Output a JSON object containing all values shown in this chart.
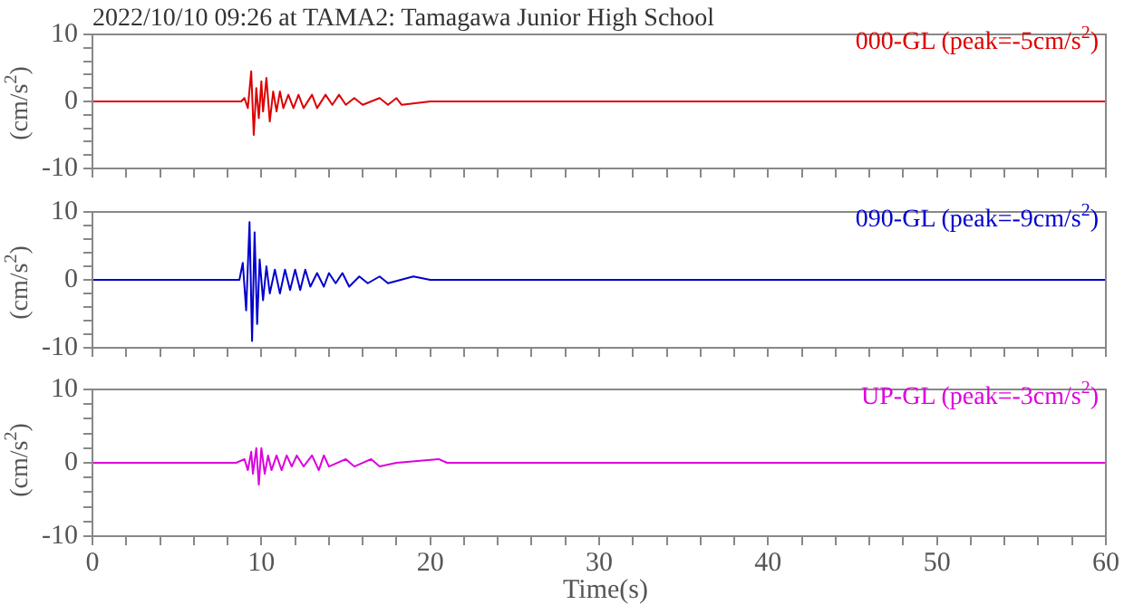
{
  "chart_data": [
    {
      "type": "line",
      "title": "2022/10/10 09:26 at TAMA2: Tamagawa Junior High School",
      "ylabel": "(cm/s$^{2}$)",
      "xlim": [
        0,
        60
      ],
      "ylim": [
        -10,
        10
      ],
      "tick_labels": "y",
      "xticks": [
        0,
        {
          "value": 2,
          "label": null
        },
        {
          "value": 4,
          "label": null
        },
        {
          "value": 6,
          "label": null
        },
        {
          "value": 8,
          "label": null
        },
        10,
        {
          "value": 12,
          "label": null
        },
        {
          "value": 14,
          "label": null
        },
        {
          "value": 16,
          "label": null
        },
        {
          "value": 18,
          "label": null
        },
        20,
        {
          "value": 22,
          "label": null
        },
        {
          "value": 24,
          "label": null
        },
        {
          "value": 26,
          "label": null
        },
        {
          "value": 28,
          "label": null
        },
        30,
        {
          "value": 32,
          "label": null
        },
        {
          "value": 34,
          "label": null
        },
        {
          "value": 36,
          "label": null
        },
        {
          "value": 38,
          "label": null
        },
        40,
        {
          "value": 42,
          "label": null
        },
        {
          "value": 44,
          "label": null
        },
        {
          "value": 46,
          "label": null
        },
        {
          "value": 48,
          "label": null
        },
        50,
        {
          "value": 52,
          "label": null
        },
        {
          "value": 54,
          "label": null
        },
        {
          "value": 56,
          "label": null
        },
        {
          "value": 58,
          "label": null
        },
        60
      ],
      "yticks": [
        -10,
        {
          "value": -8,
          "label": null
        },
        {
          "value": -6,
          "label": null
        },
        {
          "value": -4,
          "label": null
        },
        {
          "value": -2,
          "label": null
        },
        0,
        {
          "value": 2,
          "label": null
        },
        {
          "value": 4,
          "label": null
        },
        {
          "value": 6,
          "label": null
        },
        {
          "value": 8,
          "label": null
        },
        10
      ],
      "series": [
        {
          "name": "000-GL (peak=-5cm/s$^{2}$)",
          "color": "#dd0000",
          "x": [
            0,
            8.8,
            9.0,
            9.2,
            9.4,
            9.55,
            9.7,
            9.85,
            10.0,
            10.1,
            10.3,
            10.5,
            10.7,
            10.9,
            11.1,
            11.3,
            11.6,
            11.9,
            12.2,
            12.5,
            13.0,
            13.3,
            13.8,
            14.2,
            14.6,
            15.0,
            15.5,
            16.0,
            17.0,
            17.5,
            18.0,
            18.3,
            20.0,
            30.0,
            45.0,
            60
          ],
          "values": [
            0,
            0,
            0.5,
            -1,
            4.5,
            -5,
            2,
            -2.5,
            3,
            -1.5,
            3.5,
            -3,
            1.5,
            -1.5,
            1.5,
            -1,
            1,
            -1,
            1,
            -1,
            1,
            -1,
            1,
            -0.5,
            1,
            -0.5,
            0.5,
            -0.5,
            0.5,
            -0.5,
            0.5,
            -0.5,
            0,
            0,
            0,
            0
          ]
        }
      ]
    },
    {
      "type": "line",
      "ylabel": "(cm/s$^{2}$)",
      "xlim": [
        0,
        60
      ],
      "ylim": [
        -10,
        10
      ],
      "tick_labels": "y",
      "xticks": [
        0,
        {
          "value": 2,
          "label": null
        },
        {
          "value": 4,
          "label": null
        },
        {
          "value": 6,
          "label": null
        },
        {
          "value": 8,
          "label": null
        },
        10,
        {
          "value": 12,
          "label": null
        },
        {
          "value": 14,
          "label": null
        },
        {
          "value": 16,
          "label": null
        },
        {
          "value": 18,
          "label": null
        },
        20,
        {
          "value": 22,
          "label": null
        },
        {
          "value": 24,
          "label": null
        },
        {
          "value": 26,
          "label": null
        },
        {
          "value": 28,
          "label": null
        },
        30,
        {
          "value": 32,
          "label": null
        },
        {
          "value": 34,
          "label": null
        },
        {
          "value": 36,
          "label": null
        },
        {
          "value": 38,
          "label": null
        },
        40,
        {
          "value": 42,
          "label": null
        },
        {
          "value": 44,
          "label": null
        },
        {
          "value": 46,
          "label": null
        },
        {
          "value": 48,
          "label": null
        },
        50,
        {
          "value": 52,
          "label": null
        },
        {
          "value": 54,
          "label": null
        },
        {
          "value": 56,
          "label": null
        },
        {
          "value": 58,
          "label": null
        },
        60
      ],
      "yticks": [
        -10,
        {
          "value": -8,
          "label": null
        },
        {
          "value": -6,
          "label": null
        },
        {
          "value": -4,
          "label": null
        },
        {
          "value": -2,
          "label": null
        },
        0,
        {
          "value": 2,
          "label": null
        },
        {
          "value": 4,
          "label": null
        },
        {
          "value": 6,
          "label": null
        },
        {
          "value": 8,
          "label": null
        },
        10
      ],
      "series": [
        {
          "name": "090-GL (peak=-9cm/s$^{2}$)",
          "color": "#0000cc",
          "x": [
            0,
            8.7,
            8.9,
            9.1,
            9.3,
            9.45,
            9.6,
            9.75,
            9.9,
            10.1,
            10.3,
            10.5,
            10.8,
            11.1,
            11.4,
            11.7,
            12.0,
            12.3,
            12.6,
            12.9,
            13.3,
            13.7,
            14.0,
            14.4,
            14.8,
            15.2,
            15.8,
            16.3,
            17.0,
            17.5,
            19.0,
            20.0,
            30.0,
            40.0,
            60
          ],
          "values": [
            0,
            0,
            2.5,
            -4.5,
            8.5,
            -9,
            7,
            -6.5,
            3,
            -3,
            2,
            -2,
            1.5,
            -2,
            1.5,
            -1.5,
            1.5,
            -1.5,
            1.5,
            -1,
            1,
            -1,
            1,
            -0.5,
            1,
            -1,
            0.5,
            -0.5,
            0.5,
            -0.5,
            0.5,
            0,
            0,
            0,
            0
          ]
        }
      ]
    },
    {
      "type": "line",
      "ylabel": "(cm/s$^{2}$)",
      "xlabel": "Time(s)",
      "xlim": [
        0,
        60
      ],
      "ylim": [
        -10,
        10
      ],
      "xticks": [
        0,
        {
          "value": 2,
          "label": null
        },
        {
          "value": 4,
          "label": null
        },
        {
          "value": 6,
          "label": null
        },
        {
          "value": 8,
          "label": null
        },
        10,
        {
          "value": 12,
          "label": null
        },
        {
          "value": 14,
          "label": null
        },
        {
          "value": 16,
          "label": null
        },
        {
          "value": 18,
          "label": null
        },
        20,
        {
          "value": 22,
          "label": null
        },
        {
          "value": 24,
          "label": null
        },
        {
          "value": 26,
          "label": null
        },
        {
          "value": 28,
          "label": null
        },
        30,
        {
          "value": 32,
          "label": null
        },
        {
          "value": 34,
          "label": null
        },
        {
          "value": 36,
          "label": null
        },
        {
          "value": 38,
          "label": null
        },
        40,
        {
          "value": 42,
          "label": null
        },
        {
          "value": 44,
          "label": null
        },
        {
          "value": 46,
          "label": null
        },
        {
          "value": 48,
          "label": null
        },
        50,
        {
          "value": 52,
          "label": null
        },
        {
          "value": 54,
          "label": null
        },
        {
          "value": 56,
          "label": null
        },
        {
          "value": 58,
          "label": null
        },
        60
      ],
      "yticks": [
        -10,
        {
          "value": -8,
          "label": null
        },
        {
          "value": -6,
          "label": null
        },
        {
          "value": -4,
          "label": null
        },
        {
          "value": -2,
          "label": null
        },
        0,
        {
          "value": 2,
          "label": null
        },
        {
          "value": 4,
          "label": null
        },
        {
          "value": 6,
          "label": null
        },
        {
          "value": 8,
          "label": null
        },
        10
      ],
      "series": [
        {
          "name": "UP-GL (peak=-3cm/s$^{2}$)",
          "color": "#dd00dd",
          "x": [
            0,
            8.5,
            9.0,
            9.2,
            9.4,
            9.5,
            9.7,
            9.85,
            10.0,
            10.2,
            10.4,
            10.6,
            10.9,
            11.2,
            11.5,
            11.8,
            12.1,
            12.5,
            13.0,
            13.4,
            13.7,
            14.0,
            15.0,
            15.5,
            16.5,
            17.0,
            18.0,
            20.5,
            21.0,
            30.0,
            60
          ],
          "values": [
            0,
            0,
            0.5,
            -1,
            1.5,
            -1.5,
            2,
            -3,
            2,
            -1.5,
            1,
            -1,
            1,
            -1,
            1,
            -0.5,
            1,
            -0.5,
            1,
            -1,
            1,
            -0.5,
            0.5,
            -0.5,
            0.5,
            -0.5,
            0,
            0.5,
            0,
            0,
            0
          ]
        }
      ]
    }
  ]
}
